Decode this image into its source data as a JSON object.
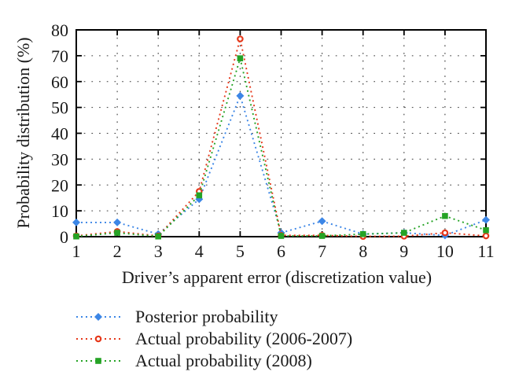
{
  "figure": {
    "background": "#ffffff",
    "text_color": "#1a1a1a",
    "frame_color": "#000000",
    "grid_color": "#3a3a3a"
  },
  "chart_data": {
    "type": "line",
    "title": "",
    "xlabel": "Driver’s apparent error (discretization value)",
    "ylabel": "Probability distribution (%)",
    "x": [
      1,
      2,
      3,
      4,
      5,
      6,
      7,
      8,
      9,
      10,
      11
    ],
    "x_ticks": [
      1,
      2,
      3,
      4,
      5,
      6,
      7,
      8,
      9,
      10,
      11
    ],
    "y_ticks": [
      0,
      10,
      20,
      30,
      40,
      50,
      60,
      70,
      80
    ],
    "xlim": [
      1,
      11
    ],
    "ylim": [
      0,
      80
    ],
    "grid": "dotted",
    "line_style": "dotted",
    "legend_position": "below-left",
    "series": [
      {
        "name": "Posterior probability",
        "color": "#3c86e6",
        "marker": "diamond",
        "values": [
          5.5,
          5.5,
          1.0,
          14.5,
          54.5,
          1.5,
          6.0,
          1.0,
          1.5,
          0.5,
          6.5
        ]
      },
      {
        "name": "Actual probability (2006-2007)",
        "color": "#e6381a",
        "marker": "circle-open",
        "values": [
          0.3,
          2.0,
          0.3,
          17.5,
          76.5,
          0.5,
          0.5,
          0.1,
          0.2,
          1.5,
          0.3
        ]
      },
      {
        "name": "Actual probability (2008)",
        "color": "#25a325",
        "marker": "square",
        "values": [
          0.1,
          1.5,
          0.1,
          16.0,
          69.0,
          0.3,
          0.3,
          1.0,
          1.5,
          8.0,
          2.5
        ]
      }
    ]
  }
}
